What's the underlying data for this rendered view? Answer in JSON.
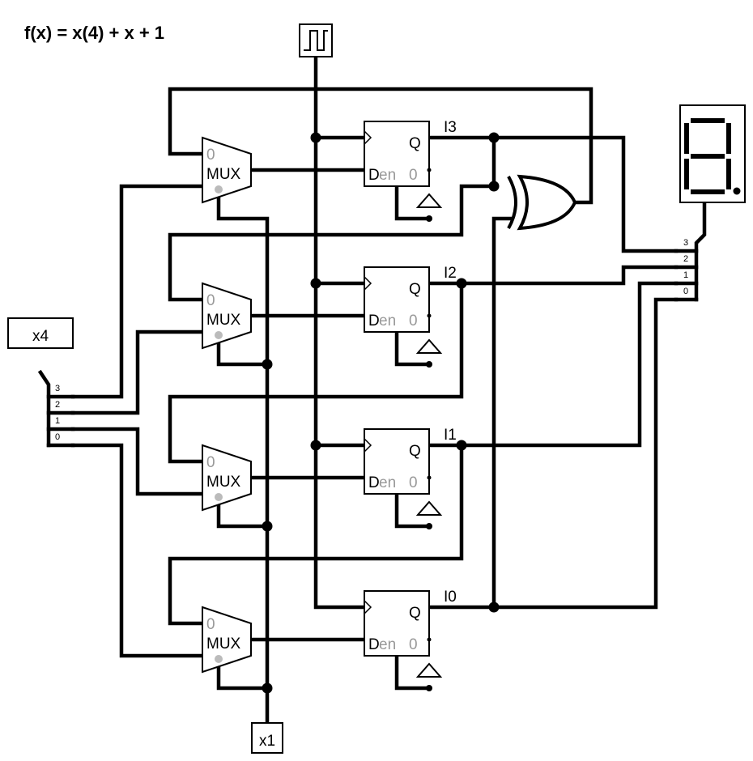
{
  "title": "f(x) = x(4) + x + 1",
  "input_x4": {
    "label": "x4",
    "bits": [
      "3",
      "2",
      "1",
      "0"
    ]
  },
  "input_x1": {
    "label": "x1"
  },
  "display_splitter": {
    "bits": [
      "3",
      "2",
      "1",
      "0"
    ]
  },
  "flipflops": [
    {
      "name": "I3",
      "q": "Q",
      "d": "D",
      "en": "en",
      "zero": "0"
    },
    {
      "name": "I2",
      "q": "Q",
      "d": "D",
      "en": "en",
      "zero": "0"
    },
    {
      "name": "I1",
      "q": "Q",
      "d": "D",
      "en": "en",
      "zero": "0"
    },
    {
      "name": "I0",
      "q": "Q",
      "d": "D",
      "en": "en",
      "zero": "0"
    }
  ],
  "mux": {
    "label": "MUX",
    "zero": "0"
  },
  "clock_icon": "square-wave-icon",
  "gate_icon": "xor-gate-icon",
  "display_icon": "seven-segment-display-icon"
}
